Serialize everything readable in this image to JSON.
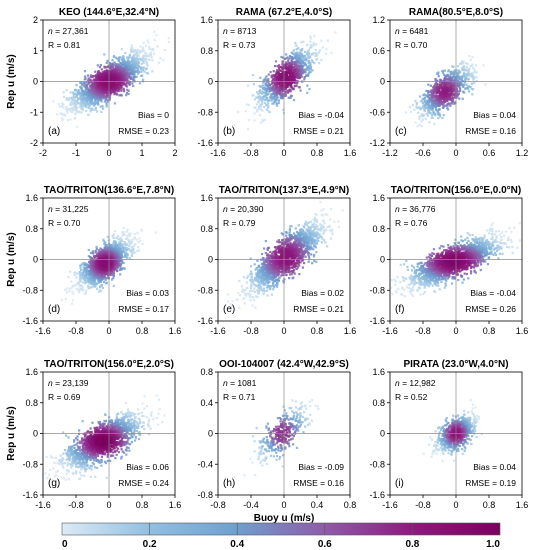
{
  "colorbar": {
    "ticks": [
      "0",
      "0.2",
      "0.4",
      "0.6",
      "0.8",
      "1.0"
    ],
    "colors": [
      "#dceaf6",
      "#92bfe0",
      "#6f9fd0",
      "#8e5ba8",
      "#8e1a7f",
      "#7a005f"
    ]
  },
  "chart_data": [
    {
      "type": "scatter",
      "title": "KEO (144.6°E,32.4°N)",
      "xlabel": "",
      "ylabel": "Rep u (m/s)",
      "xlim": [
        -2,
        2
      ],
      "ylim": [
        -2,
        2
      ],
      "xticks": [
        "-2",
        "-1",
        "0",
        "1",
        "2"
      ],
      "yticks": [
        "-2",
        "-1",
        "0",
        "1",
        "2"
      ],
      "n": "27,361",
      "R": "0.81",
      "bias": "0",
      "rmse": "0.23",
      "label": "(a)",
      "cloud": {
        "cx": 0,
        "cy": 0,
        "sx": 0.55,
        "sy": 0.45,
        "rho": 0.81,
        "npts": 1800,
        "peak": 0.9
      }
    },
    {
      "type": "scatter",
      "title": "RAMA (67.2°E,4.0°S)",
      "xlabel": "",
      "ylabel": "",
      "xlim": [
        -1.6,
        1.6
      ],
      "ylim": [
        -1.6,
        1.6
      ],
      "xticks": [
        "-1.6",
        "-0.8",
        "0",
        "0.8",
        "1.6"
      ],
      "yticks": [
        "-1.6",
        "-0.8",
        "0",
        "0.8",
        "1.6"
      ],
      "n": "8713",
      "R": "0.73",
      "bias": "-0.04",
      "rmse": "0.21",
      "label": "(b)",
      "cloud": {
        "cx": 0.05,
        "cy": 0.1,
        "sx": 0.35,
        "sy": 0.4,
        "rho": 0.75,
        "npts": 900,
        "peak": 0.9
      }
    },
    {
      "type": "scatter",
      "title": "RAMA(80.5°E,8.0°S)",
      "xlabel": "",
      "ylabel": "",
      "xlim": [
        -1.2,
        1.2
      ],
      "ylim": [
        -1.2,
        1.2
      ],
      "xticks": [
        "-1.2",
        "-0.6",
        "0",
        "0.6",
        "1.2"
      ],
      "yticks": [
        "-1.2",
        "-0.6",
        "0",
        "0.6",
        "1.2"
      ],
      "n": "6481",
      "R": "0.70",
      "bias": "0.04",
      "rmse": "0.16",
      "label": "(c)",
      "cloud": {
        "cx": -0.2,
        "cy": -0.2,
        "sx": 0.25,
        "sy": 0.25,
        "rho": 0.72,
        "npts": 800,
        "peak": 0.8
      }
    },
    {
      "type": "scatter",
      "title": "TAO/TRITON(136.6°E,7.8°N)",
      "xlabel": "",
      "ylabel": "Rep u (m/s)",
      "xlim": [
        -1.6,
        1.6
      ],
      "ylim": [
        -1.6,
        1.6
      ],
      "xticks": [
        "-1.6",
        "-0.8",
        "0",
        "0.8",
        "1.6"
      ],
      "yticks": [
        "-1.6",
        "-0.8",
        "0",
        "0.8",
        "1.6"
      ],
      "n": "31,225",
      "R": "0.70",
      "bias": "0.03",
      "rmse": "0.17",
      "label": "(d)",
      "cloud": {
        "cx": -0.1,
        "cy": -0.1,
        "sx": 0.3,
        "sy": 0.3,
        "rho": 0.72,
        "npts": 1400,
        "peak": 0.9
      }
    },
    {
      "type": "scatter",
      "title": "TAO/TRITON(137.3°E,4.9°N)",
      "xlabel": "",
      "ylabel": "",
      "xlim": [
        -1.6,
        1.6
      ],
      "ylim": [
        -1.6,
        1.6
      ],
      "xticks": [
        "-1.6",
        "-0.8",
        "0",
        "0.8",
        "1.6"
      ],
      "yticks": [
        "-1.6",
        "-0.8",
        "0",
        "0.8",
        "1.6"
      ],
      "n": "20,390",
      "R": "0.79",
      "bias": "0.02",
      "rmse": "0.21",
      "label": "(e)",
      "cloud": {
        "cx": 0.05,
        "cy": 0.05,
        "sx": 0.45,
        "sy": 0.45,
        "rho": 0.82,
        "npts": 1400,
        "peak": 0.85
      }
    },
    {
      "type": "scatter",
      "title": "TAO/TRITON(156.0°E,0.0°N)",
      "xlabel": "",
      "ylabel": "",
      "xlim": [
        -1.6,
        1.6
      ],
      "ylim": [
        -1.6,
        1.6
      ],
      "xticks": [
        "-1.6",
        "-0.8",
        "0",
        "0.8",
        "1.6"
      ],
      "yticks": [
        "-1.6",
        "-0.8",
        "0",
        "0.8",
        "1.6"
      ],
      "n": "36,776",
      "R": "0.76",
      "bias": "-0.04",
      "rmse": "0.26",
      "label": "(f)",
      "cloud": {
        "cx": -0.05,
        "cy": -0.05,
        "sx": 0.55,
        "sy": 0.32,
        "rho": 0.78,
        "npts": 1700,
        "peak": 0.95
      }
    },
    {
      "type": "scatter",
      "title": "TAO/TRITON(156.0°E,2.0°S)",
      "xlabel": "",
      "ylabel": "Rep u (m/s)",
      "xlim": [
        -1.6,
        1.6
      ],
      "ylim": [
        -1.6,
        1.6
      ],
      "xticks": [
        "-1.6",
        "-0.8",
        "0",
        "0.8",
        "1.6"
      ],
      "yticks": [
        "-1.6",
        "-0.8",
        "0",
        "0.8",
        "1.6"
      ],
      "n": "23,139",
      "R": "0.69",
      "bias": "0.06",
      "rmse": "0.24",
      "label": "(g)",
      "cloud": {
        "cx": -0.15,
        "cy": -0.2,
        "sx": 0.45,
        "sy": 0.35,
        "rho": 0.72,
        "npts": 1500,
        "peak": 1.0
      }
    },
    {
      "type": "scatter",
      "title": "OOI-104007 (42.4°W,42.9°S)",
      "xlabel": "Buoy u (m/s)",
      "ylabel": "",
      "xlim": [
        -0.8,
        0.8
      ],
      "ylim": [
        -0.8,
        0.8
      ],
      "xticks": [
        "-0.8",
        "-0.4",
        "0",
        "0.4",
        "0.8"
      ],
      "yticks": [
        "-0.8",
        "-0.4",
        "0",
        "0.4",
        "0.8"
      ],
      "n": "1081",
      "R": "0.71",
      "bias": "-0.09",
      "rmse": "0.16",
      "label": "(h)",
      "cloud": {
        "cx": -0.02,
        "cy": 0.0,
        "sx": 0.15,
        "sy": 0.17,
        "rho": 0.72,
        "npts": 350,
        "peak": 0.75
      }
    },
    {
      "type": "scatter",
      "title": "PIRATA (23.0°W,4.0°N)",
      "xlabel": "",
      "ylabel": "",
      "xlim": [
        -1.6,
        1.6
      ],
      "ylim": [
        -1.6,
        1.6
      ],
      "xticks": [
        "-1.6",
        "-0.8",
        "0",
        "0.8",
        "1.6"
      ],
      "yticks": [
        "-1.6",
        "-0.8",
        "0",
        "0.8",
        "1.6"
      ],
      "n": "12,982",
      "R": "0.52",
      "bias": "0.04",
      "rmse": "0.19",
      "label": "(i)",
      "cloud": {
        "cx": 0.0,
        "cy": 0.0,
        "sx": 0.22,
        "sy": 0.25,
        "rho": 0.55,
        "npts": 700,
        "peak": 0.85
      }
    }
  ]
}
